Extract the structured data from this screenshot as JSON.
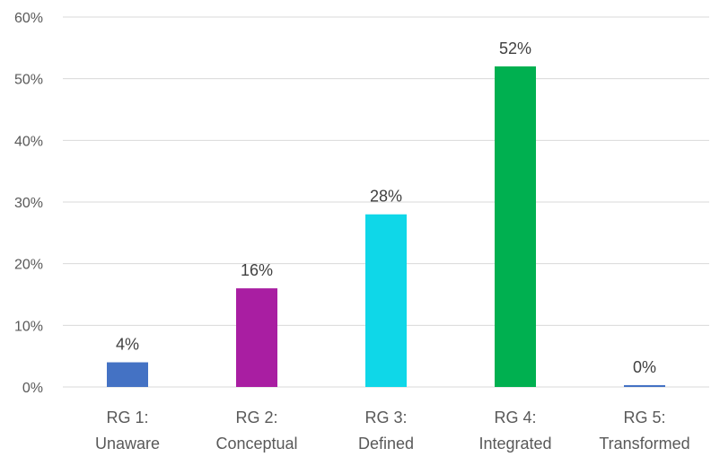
{
  "chart_data": {
    "type": "bar",
    "title": "",
    "xlabel": "",
    "ylabel": "",
    "categories": [
      [
        "RG 1:",
        "Unaware"
      ],
      [
        "RG 2:",
        "Conceptual"
      ],
      [
        "RG 3:",
        "Defined"
      ],
      [
        "RG 4:",
        "Integrated"
      ],
      [
        "RG 5:",
        "Transformed"
      ]
    ],
    "values": [
      4,
      16,
      28,
      52,
      0.3
    ],
    "data_labels": [
      "4%",
      "16%",
      "28%",
      "52%",
      "0%"
    ],
    "colors": [
      "#4472C4",
      "#A91EA2",
      "#0FD7E8",
      "#00B050",
      "#4472C4"
    ],
    "ylim": [
      0,
      60
    ],
    "yticks": [
      0,
      10,
      20,
      30,
      40,
      50,
      60
    ],
    "ytick_labels": [
      "0%",
      "10%",
      "20%",
      "30%",
      "40%",
      "50%",
      "60%"
    ],
    "grid": true,
    "grid_color": "#D9D9D9",
    "legend": "none"
  }
}
